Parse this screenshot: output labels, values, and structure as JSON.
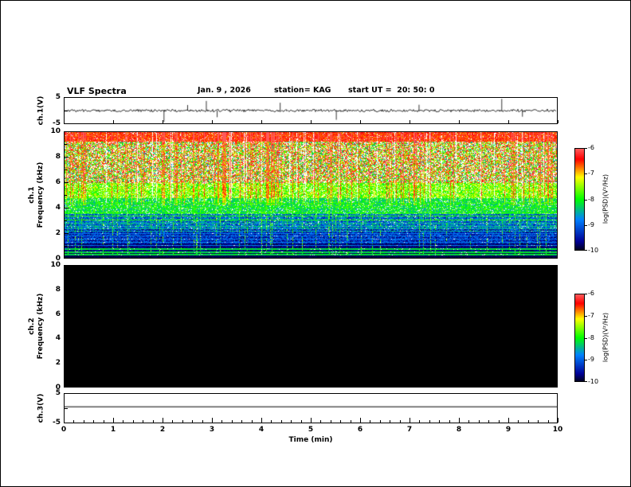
{
  "figure": {
    "title": "VLF Spectra",
    "date_label": "Jan. 9 , 2026",
    "station_label": "station= KAG",
    "start_ut_label": "start UT =  20: 50: 0"
  },
  "x_axis": {
    "label": "Time (min)",
    "min": 0,
    "max": 10,
    "major_ticks": [
      "0",
      "1",
      "2",
      "3",
      "4",
      "5",
      "6",
      "7",
      "8",
      "9",
      "10"
    ],
    "minor_interval_min": 0.2
  },
  "panels": {
    "ch1_wave": {
      "name": "ch.1 waveform",
      "ylabel": "ch.1(V)",
      "ymin": -5,
      "ymax": 5,
      "ymax_label": "5",
      "ymin_label": "-5"
    },
    "ch1_spec": {
      "name": "ch.1 spectrogram",
      "ylabel_line1": "ch.1",
      "ylabel_line2": "Frequency (kHz)",
      "ymin": 0,
      "ymax": 10,
      "ytick_labels": [
        "0",
        "2",
        "4",
        "6",
        "8",
        "10"
      ]
    },
    "ch2_spec": {
      "name": "ch.2 spectrogram",
      "ylabel_line1": "ch.2",
      "ylabel_line2": "Frequency (kHz)",
      "ymin": 0,
      "ymax": 10,
      "ytick_labels": [
        "0",
        "2",
        "4",
        "6",
        "8",
        "10"
      ]
    },
    "ch3_wave": {
      "name": "ch.3 waveform",
      "ylabel": "ch.3(V)",
      "ymin": -5,
      "ymax": 5,
      "ymax_label": "5",
      "ymin_label": "-5"
    }
  },
  "colorbars": [
    {
      "label": "log(PSD)(V²/Hz)",
      "tick_labels": [
        "-6",
        "-7",
        "-8",
        "-9",
        "-10"
      ],
      "zmax": -6,
      "zmin": -10
    },
    {
      "label": "log(PSD)(V²/Hz)",
      "tick_labels": [
        "-6",
        "-7",
        "-8",
        "-9",
        "-10"
      ],
      "zmax": -6,
      "zmin": -10
    }
  ],
  "chart_data": [
    {
      "type": "line",
      "series": "ch.1(V)",
      "xlim": [
        0,
        10
      ],
      "ylim": [
        -5,
        5
      ],
      "baseline_v": 0,
      "noise_amplitude_v": 0.4,
      "spikes": [
        {
          "t_min": 2.02,
          "v": -4.5
        },
        {
          "t_min": 2.5,
          "v": 2.2
        },
        {
          "t_min": 2.88,
          "v": 3.8
        },
        {
          "t_min": 3.1,
          "v": -2.6
        },
        {
          "t_min": 4.38,
          "v": 3.1
        },
        {
          "t_min": 5.52,
          "v": -3.6
        },
        {
          "t_min": 7.2,
          "v": 2.3
        },
        {
          "t_min": 8.88,
          "v": 4.6
        },
        {
          "t_min": 9.3,
          "v": -2.4
        }
      ],
      "description": "broadband noise waveform around 0 V with sparse impulsive sferic spikes"
    },
    {
      "type": "heatmap",
      "series": "ch.1 spectrogram",
      "xlim": [
        0,
        10
      ],
      "ylim": [
        0,
        10
      ],
      "zlim": [
        -10,
        -6
      ],
      "zlabel": "log(PSD)(V²/Hz)",
      "bands": [
        {
          "f_range_khz": [
            9.3,
            10
          ],
          "level": "high PSD, near-solid red band"
        },
        {
          "f_range_khz": [
            6,
            9.3
          ],
          "level": "high PSD, dense vertical sferic streaks (red/yellow/green on white)"
        },
        {
          "f_range_khz": [
            4.8,
            6
          ],
          "level": "medium PSD (green/yellow)"
        },
        {
          "f_range_khz": [
            3.5,
            4.8
          ],
          "level": "medium-low PSD (green/cyan)"
        },
        {
          "f_range_khz": [
            2.3,
            3.5
          ],
          "level": "low PSD (blue) with horizontal bands"
        },
        {
          "f_range_khz": [
            1.2,
            2.3
          ],
          "level": "very low PSD (dark blue/black) with narrow bands"
        },
        {
          "f_range_khz": [
            0,
            1.2
          ],
          "level": "near noise floor (black) with sparse narrow lines"
        }
      ],
      "horizontal_line_freqs_khz": [
        4.35,
        4.05,
        3.6,
        3.35,
        3.05,
        2.8,
        2.55,
        2.35,
        2.15,
        1.95,
        1.75,
        1.5,
        1.25,
        1.0,
        0.75,
        0.5,
        0.3
      ]
    },
    {
      "type": "heatmap",
      "series": "ch.2 spectrogram",
      "xlim": [
        0,
        10
      ],
      "ylim": [
        0,
        10
      ],
      "zlim": [
        -10,
        -6
      ],
      "uniform_level": "at/below noise floor — uniform black, no signal"
    },
    {
      "type": "line",
      "series": "ch.3(V)",
      "xlim": [
        0,
        10
      ],
      "ylim": [
        -5,
        5
      ],
      "constant_v": 0.5,
      "description": "flat horizontal trace, no signal"
    }
  ]
}
